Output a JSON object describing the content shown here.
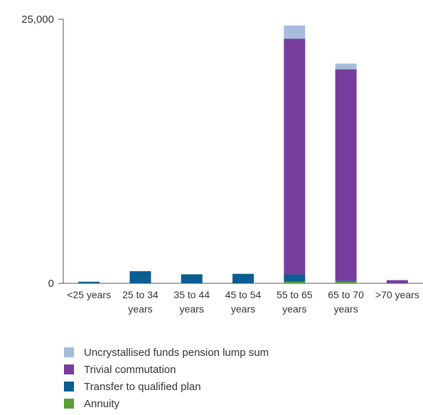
{
  "chart_data": {
    "type": "bar",
    "stacked": true,
    "title": "",
    "xlabel": "",
    "ylabel": "",
    "ylim": [
      0,
      25000
    ],
    "y_ticks": [
      {
        "value": 0,
        "label": "0"
      },
      {
        "value": 25000,
        "label": "25,000"
      }
    ],
    "categories": [
      [
        "<25 years"
      ],
      [
        "25 to 34",
        "years"
      ],
      [
        "35 to 44",
        "years"
      ],
      [
        "45 to 54",
        "years"
      ],
      [
        "55 to 65",
        "years"
      ],
      [
        "65 to 70",
        "years"
      ],
      [
        ">70 years"
      ]
    ],
    "series": [
      {
        "name": "Annuity",
        "color": "#5a9e3c",
        "values": [
          0,
          0,
          0,
          0,
          150,
          150,
          0
        ]
      },
      {
        "name": "Transfer to qualified plan",
        "color": "#0c5d93",
        "values": [
          150,
          1150,
          850,
          900,
          700,
          100,
          0
        ]
      },
      {
        "name": "Trivial commutation",
        "color": "#773c9c",
        "values": [
          0,
          0,
          0,
          0,
          22300,
          20000,
          300
        ]
      },
      {
        "name": "Uncrystallised funds pension lump sum",
        "color": "#a6bcdb",
        "values": [
          0,
          0,
          0,
          0,
          1250,
          550,
          0
        ]
      }
    ],
    "legend_position": "bottom",
    "grid": false
  }
}
